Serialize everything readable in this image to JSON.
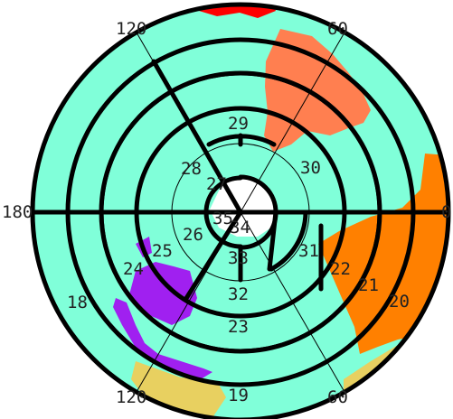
{
  "colors": {
    "ocean": "#80ffd9",
    "south_america": "#ff7f50",
    "africa": "#ff8000",
    "australia": "#a020f0",
    "north_america": "#ff0000",
    "eurasia": "#e8d060",
    "antarctica": "#ffffff",
    "lines": "#000000"
  },
  "longitude_labels": [
    "60",
    "120",
    "180",
    "0",
    "120",
    "60"
  ],
  "zone_labels": [
    "29",
    "28",
    "27",
    "30",
    "35",
    "34",
    "26",
    "25",
    "24",
    "33",
    "31",
    "22",
    "21",
    "20",
    "32",
    "23",
    "18",
    "19"
  ]
}
